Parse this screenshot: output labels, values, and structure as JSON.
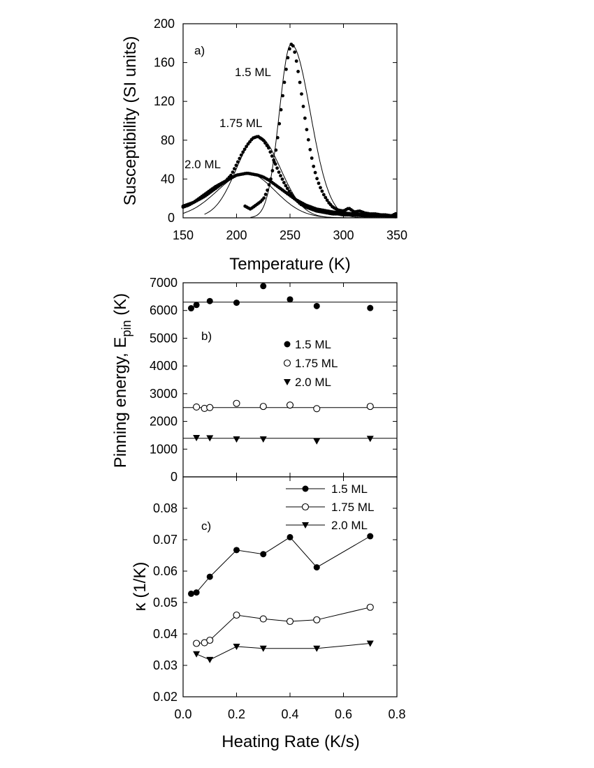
{
  "chart_data": [
    {
      "panel": "a)",
      "type": "scatter",
      "xlabel": "Temperature (K)",
      "ylabel": "Susceptibility (SI units)",
      "xlim": [
        150,
        350
      ],
      "ylim": [
        0,
        200
      ],
      "xticks": [
        150,
        200,
        250,
        300,
        350
      ],
      "yticks": [
        0,
        40,
        80,
        120,
        160,
        200
      ],
      "series": [
        {
          "name": "1.5 ML",
          "peak_x": 251,
          "peak_y": 179,
          "sigma_low": 11,
          "sigma_high": 18,
          "data_from": 208,
          "fit_from": 213,
          "x": [
            208,
            213,
            218,
            223,
            226,
            229,
            232,
            235,
            238,
            241,
            244,
            247,
            249,
            251,
            253,
            255,
            257,
            260,
            263,
            266,
            269,
            272,
            275,
            278,
            282,
            286,
            290,
            295,
            300,
            305,
            310,
            315,
            320,
            325,
            330,
            335,
            340,
            345,
            350
          ],
          "y": [
            12,
            9,
            13,
            17,
            21,
            29,
            40,
            56,
            79,
            106,
            133,
            158,
            172,
            179,
            177,
            168,
            155,
            134,
            110,
            88,
            69,
            53,
            41,
            32,
            23,
            16,
            11,
            8,
            7,
            10,
            6,
            7,
            5,
            4,
            4,
            3,
            3,
            2,
            5
          ]
        },
        {
          "name": "1.75 ML",
          "peak_x": 220,
          "peak_y": 84,
          "sigma_low": 20,
          "sigma_high": 21,
          "data_from": 150,
          "fit_from": 170,
          "x": [
            150,
            155,
            160,
            165,
            170,
            175,
            180,
            185,
            190,
            195,
            200,
            205,
            210,
            215,
            220,
            225,
            230,
            235,
            240,
            245,
            250,
            255,
            260,
            265,
            270,
            275,
            280,
            285,
            290,
            295,
            300,
            310,
            320,
            330,
            340,
            350
          ],
          "y": [
            12,
            14,
            16,
            19,
            22,
            26,
            30,
            34,
            38,
            44,
            55,
            66,
            75,
            82,
            84,
            80,
            72,
            59,
            46,
            35,
            26,
            19,
            14,
            11,
            9,
            7,
            6,
            5,
            4,
            4,
            3,
            3,
            2,
            2,
            2,
            1
          ]
        },
        {
          "name": "2.0 ML",
          "peak_x": 210,
          "peak_y": 46,
          "sigma_low": 28,
          "sigma_high": 26,
          "data_from": 150,
          "fit_from": 150,
          "x": [
            150,
            155,
            160,
            165,
            170,
            175,
            180,
            185,
            190,
            195,
            200,
            205,
            210,
            215,
            220,
            225,
            230,
            235,
            240,
            245,
            250,
            255,
            260,
            265,
            270,
            275,
            280,
            285,
            290,
            300,
            310,
            320,
            330,
            340,
            350
          ],
          "y": [
            11,
            13,
            16,
            20,
            24,
            28,
            32,
            35,
            38,
            41,
            44,
            45,
            46,
            45,
            44,
            42,
            39,
            35,
            31,
            27,
            23,
            19,
            16,
            13,
            11,
            9,
            8,
            7,
            6,
            5,
            4,
            3,
            3,
            2,
            2
          ]
        }
      ]
    },
    {
      "panel": "b)",
      "type": "scatter",
      "xlabel": "",
      "ylabel_main": "Pinning energy, E",
      "ylabel_sub": "pin",
      "ylabel_unit": " (K)",
      "xlim": [
        0,
        0.8
      ],
      "ylim": [
        0,
        7000
      ],
      "yticks": [
        0,
        1000,
        2000,
        3000,
        4000,
        5000,
        6000,
        7000
      ],
      "legend": "right",
      "x": [
        0.03,
        0.05,
        0.1,
        0.2,
        0.3,
        0.4,
        0.5,
        0.7
      ],
      "series": [
        {
          "name": "1.5 ML",
          "marker": "filled-circle",
          "mean": 6300,
          "values": [
            6080,
            6200,
            6340,
            6280,
            6880,
            6400,
            6160,
            6090
          ]
        },
        {
          "name": "1.75 ML",
          "marker": "open-circle",
          "mean": 2500,
          "x": [
            0.05,
            0.08,
            0.1,
            0.2,
            0.3,
            0.4,
            0.5,
            0.7
          ],
          "values": [
            2520,
            2470,
            2500,
            2650,
            2540,
            2590,
            2460,
            2540
          ]
        },
        {
          "name": "2.0 ML",
          "marker": "filled-triangle-down",
          "mean": 1390,
          "x": [
            0.05,
            0.1,
            0.2,
            0.3,
            0.5,
            0.7
          ],
          "values": [
            1410,
            1400,
            1360,
            1360,
            1290,
            1380
          ]
        }
      ]
    },
    {
      "panel": "c)",
      "type": "line",
      "xlabel": "Heating Rate (K/s)",
      "ylabel": "κ (1/K)",
      "xlim": [
        0,
        0.8
      ],
      "ylim": [
        0.02,
        0.09
      ],
      "xticks": [
        "0.0",
        "0.2",
        "0.4",
        "0.6",
        "0.8"
      ],
      "yticks": [
        "0.02",
        "0.03",
        "0.04",
        "0.05",
        "0.06",
        "0.07",
        "0.08"
      ],
      "legend": "top-right",
      "series": [
        {
          "name": "1.5 ML",
          "marker": "filled-circle",
          "x": [
            0.03,
            0.05,
            0.1,
            0.2,
            0.3,
            0.4,
            0.5,
            0.7
          ],
          "values": [
            0.0528,
            0.0532,
            0.0582,
            0.0667,
            0.0654,
            0.0708,
            0.0612,
            0.0711
          ]
        },
        {
          "name": "1.75 ML",
          "marker": "open-circle",
          "x": [
            0.05,
            0.08,
            0.1,
            0.2,
            0.3,
            0.4,
            0.5,
            0.7
          ],
          "values": [
            0.037,
            0.0372,
            0.038,
            0.046,
            0.0448,
            0.044,
            0.0445,
            0.0485
          ]
        },
        {
          "name": "2.0 ML",
          "marker": "filled-triangle-down",
          "x": [
            0.05,
            0.1,
            0.2,
            0.3,
            0.5,
            0.7
          ],
          "values": [
            0.0336,
            0.0318,
            0.036,
            0.0354,
            0.0354,
            0.037
          ]
        }
      ]
    }
  ]
}
